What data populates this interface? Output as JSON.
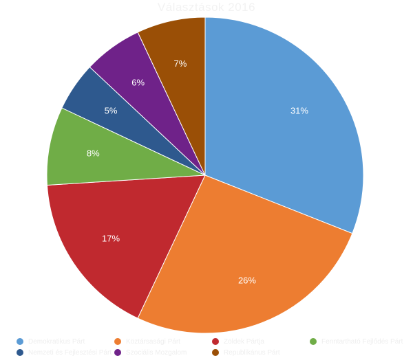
{
  "chart_data": {
    "type": "pie",
    "title": "Választások 2016",
    "slices": [
      {
        "label": "Demokratikus Párt",
        "value": 31,
        "display": "31%",
        "color": "#5b9bd5"
      },
      {
        "label": "Köztársasági Párt",
        "value": 26,
        "display": "26%",
        "color": "#ed7d31"
      },
      {
        "label": "Zöldek Pártja",
        "value": 17,
        "display": "17%",
        "color": "#c0292f"
      },
      {
        "label": "Fenntartható Fejlődés Párt",
        "value": 8,
        "display": "8%",
        "color": "#70ad47"
      },
      {
        "label": "Nemzeti és Fejlesztési Párt",
        "value": 5,
        "display": "5%",
        "color": "#2e598e"
      },
      {
        "label": "Szociális Mozgalom",
        "value": 6,
        "display": "6%",
        "color": "#6f2289"
      },
      {
        "label": "Republikánus Párt",
        "value": 7,
        "display": "7%",
        "color": "#9a4f06"
      }
    ],
    "legend_position": "bottom"
  }
}
